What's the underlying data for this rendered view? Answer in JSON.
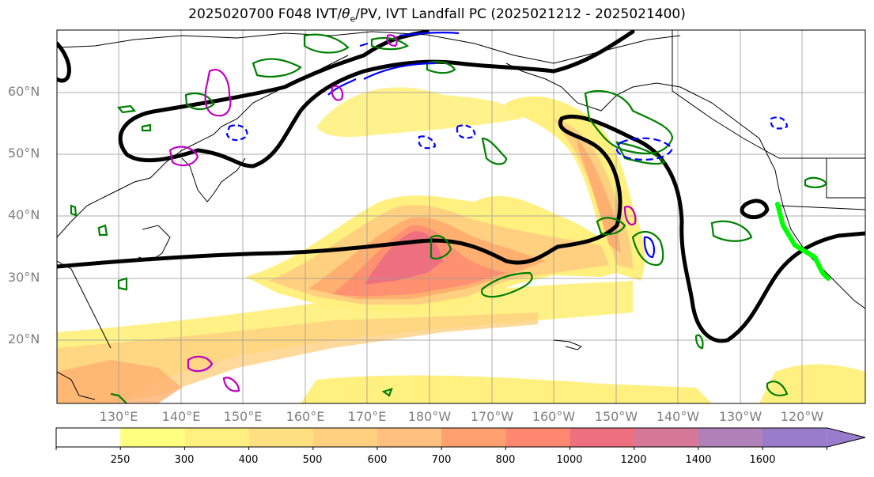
{
  "title": "2025020700 F048 IVT/θe/PV, IVT Landfall PC (2025021212 - 2025021400)",
  "title_parts": {
    "pre": "2025020700 F048 IVT/",
    "theta": "θ",
    "sub": "e",
    "post": "/PV, IVT Landfall PC (2025021212 - 2025021400)"
  },
  "lat_labels": [
    "60°N",
    "50°N",
    "40°N",
    "30°N",
    "20°N"
  ],
  "lon_labels": [
    "130°E",
    "140°E",
    "150°E",
    "160°E",
    "170°E",
    "180°W",
    "170°W",
    "160°W",
    "150°W",
    "140°W",
    "130°W",
    "120°W"
  ],
  "colorbar": {
    "ticks": [
      "250",
      "300",
      "400",
      "500",
      "600",
      "700",
      "800",
      "1000",
      "1200",
      "1400",
      "1600"
    ],
    "colors": [
      "#ffffff",
      "#ffff80",
      "#fff080",
      "#ffe080",
      "#ffd080",
      "#ffc080",
      "#ffa070",
      "#ff8870",
      "#ee7080",
      "#d87898",
      "#b080b8",
      "#9a7ccc"
    ],
    "extend": "max"
  },
  "colors": {
    "ivt_fill": "#ffb070",
    "theta_e_contour": "#000000",
    "pv_green": "#008000",
    "pv_blue": "#0000ff",
    "pv_magenta": "#c000c0",
    "landfall_line": "#00ff00"
  }
}
